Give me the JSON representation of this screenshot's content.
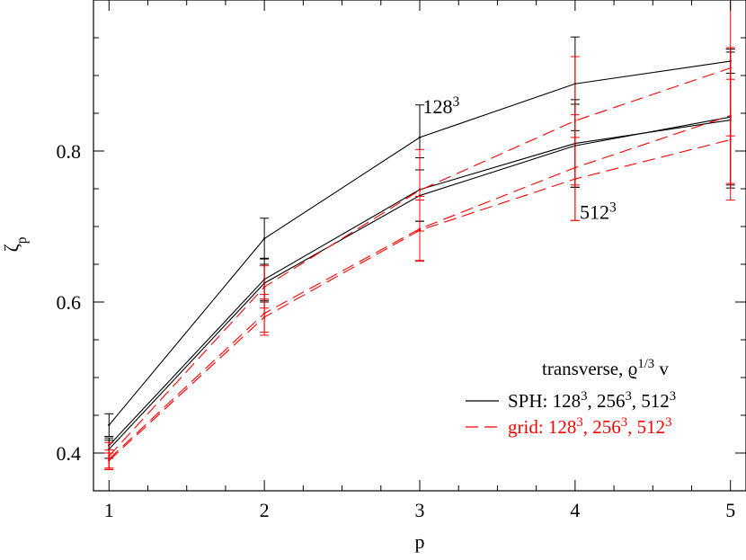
{
  "chart_data": {
    "type": "line",
    "xlabel": "p",
    "ylabel": "ζp",
    "xlim": [
      0.9,
      5.1
    ],
    "ylim": [
      0.35,
      1.0
    ],
    "x_ticks": [
      1,
      2,
      3,
      4,
      5
    ],
    "x_tick_labels": [
      "1",
      "2",
      "3",
      "4",
      "5"
    ],
    "y_ticks": [
      0.4,
      0.6,
      0.8
    ],
    "y_tick_labels": [
      "0.4",
      "0.6",
      "0.8"
    ],
    "grid": false,
    "legend": {
      "placement": "bottom-right",
      "title": "transverse, ϱ1/3 v",
      "entries": [
        {
          "label": "SPH: 1283, 2563, 5123",
          "color": "#000000",
          "dash": "solid"
        },
        {
          "label": "grid: 1283, 2563, 5123",
          "color": "#ff0000",
          "dash": "dashed"
        }
      ]
    },
    "annotations": [
      {
        "text": "1283",
        "x": 3.02,
        "y": 0.85
      },
      {
        "text": "5123",
        "x": 4.03,
        "y": 0.71
      }
    ],
    "series": [
      {
        "group": "SPH",
        "color": "#000000",
        "dash": "solid",
        "x": [
          1,
          2,
          3,
          4,
          5
        ],
        "y": [
          0.437,
          0.684,
          0.818,
          0.889,
          0.919
        ],
        "err": [
          0.015,
          0.027,
          0.043,
          0.062,
          0.016
        ]
      },
      {
        "group": "SPH",
        "color": "#000000",
        "dash": "solid",
        "x": [
          1,
          2,
          3,
          4,
          5
        ],
        "y": [
          0.41,
          0.63,
          0.749,
          0.81,
          0.841
        ],
        "err": [
          0.01,
          0.028,
          0.042,
          0.058,
          0.09
        ]
      },
      {
        "group": "SPH",
        "color": "#000000",
        "dash": "solid",
        "x": [
          1,
          2,
          3,
          4,
          5
        ],
        "y": [
          0.405,
          0.625,
          0.741,
          0.807,
          0.845
        ],
        "err": [
          0.012,
          0.025,
          0.034,
          0.055,
          0.09
        ]
      },
      {
        "group": "grid",
        "color": "#ff0000",
        "dash": "dashed",
        "x": [
          1,
          2,
          3,
          4,
          5
        ],
        "y": [
          0.396,
          0.62,
          0.748,
          0.84,
          0.91
        ],
        "err": [
          0.018,
          0.028,
          0.054,
          0.085,
          0.09
        ]
      },
      {
        "group": "grid",
        "color": "#ff0000",
        "dash": "dashed",
        "x": [
          1,
          2,
          3,
          4,
          5
        ],
        "y": [
          0.392,
          0.585,
          0.697,
          0.778,
          0.847
        ],
        "err": [
          0.012,
          0.025,
          0.043,
          0.07,
          0.09
        ]
      },
      {
        "group": "grid",
        "color": "#ff0000",
        "dash": "dashed",
        "x": [
          1,
          2,
          3,
          4,
          5
        ],
        "y": [
          0.39,
          0.58,
          0.695,
          0.763,
          0.815
        ],
        "err": [
          0.01,
          0.024,
          0.04,
          0.055,
          0.08
        ]
      }
    ]
  }
}
